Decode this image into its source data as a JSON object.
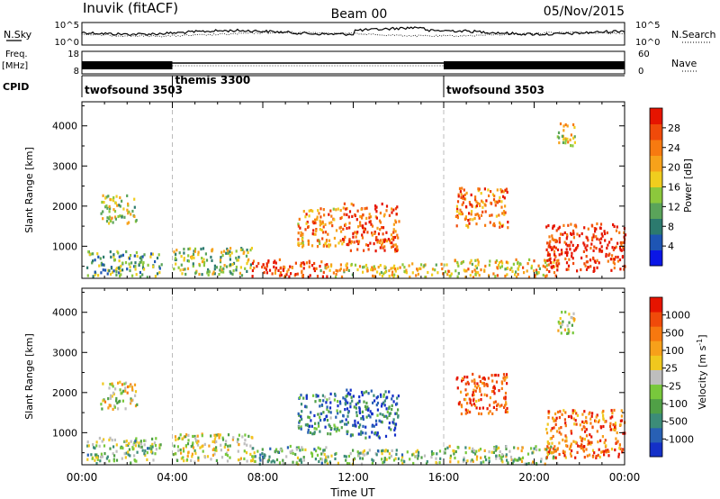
{
  "header": {
    "station": "Inuvik (fitACF)",
    "beam": "Beam 00",
    "date": "05/Nov/2015"
  },
  "noise_panel": {
    "left_label": "N.Sky",
    "right_label": "N.Search",
    "left_ticks": [
      "10^5",
      "10^0"
    ],
    "right_ticks": [
      "10^5",
      "10^0"
    ]
  },
  "freq_panel": {
    "left_label_1": "Freq.",
    "left_label_2": "[MHz]",
    "right_label": "Nave",
    "left_ticks": [
      "18",
      "8"
    ],
    "right_ticks": [
      "60",
      "0"
    ]
  },
  "cpid": {
    "label": "CPID",
    "segments": [
      {
        "name": "twofsound 3503",
        "start_hour": 0,
        "end_hour": 4
      },
      {
        "name": "themis 3300",
        "start_hour": 4,
        "end_hour": 16
      },
      {
        "name": "twofsound 3503",
        "start_hour": 16,
        "end_hour": 24
      }
    ]
  },
  "chart_data": [
    {
      "type": "heatmap",
      "title": "",
      "parameter": "Power",
      "ylabel": "Slant Range [km]",
      "xlabel": "",
      "xlim_hours": [
        0,
        24
      ],
      "ylim": [
        200,
        4600
      ],
      "y_ticks": [
        "1000",
        "2000",
        "3000",
        "4000"
      ],
      "colorbar": {
        "label": "Power [dB]",
        "ticks": [
          "4",
          "8",
          "12",
          "16",
          "20",
          "24",
          "28"
        ],
        "colors": [
          "#0a16e6",
          "#1e55b4",
          "#2c7a6e",
          "#5aa45a",
          "#8cc83c",
          "#f0cd1e",
          "#f7a21a",
          "#f77a10",
          "#f04a0a",
          "#e61400"
        ]
      },
      "echo_regions": [
        {
          "x0": 0.2,
          "x1": 3.5,
          "y0": 250,
          "y1": 900,
          "level": 0.35
        },
        {
          "x0": 0.8,
          "x1": 2.4,
          "y0": 1600,
          "y1": 2300,
          "level": 0.5
        },
        {
          "x0": 4.0,
          "x1": 7.5,
          "y0": 300,
          "y1": 1000,
          "level": 0.45
        },
        {
          "x0": 7.5,
          "x1": 10.8,
          "y0": 250,
          "y1": 700,
          "level": 0.9
        },
        {
          "x0": 9.5,
          "x1": 11.5,
          "y0": 1000,
          "y1": 2000,
          "level": 0.7
        },
        {
          "x0": 11.5,
          "x1": 14.0,
          "y0": 900,
          "y1": 2100,
          "level": 0.85
        },
        {
          "x0": 10.5,
          "x1": 16.0,
          "y0": 250,
          "y1": 600,
          "level": 0.55
        },
        {
          "x0": 16.0,
          "x1": 21.0,
          "y0": 250,
          "y1": 700,
          "level": 0.6
        },
        {
          "x0": 16.5,
          "x1": 18.8,
          "y0": 1500,
          "y1": 2500,
          "level": 0.75
        },
        {
          "x0": 20.5,
          "x1": 24.0,
          "y0": 400,
          "y1": 1600,
          "level": 0.95
        },
        {
          "x0": 21.0,
          "x1": 21.8,
          "y0": 3500,
          "y1": 4100,
          "level": 0.55
        }
      ]
    },
    {
      "type": "heatmap",
      "title": "",
      "parameter": "Velocity",
      "ylabel": "Slant Range [km]",
      "xlabel": "Time UT",
      "xlim_hours": [
        0,
        24
      ],
      "ylim": [
        200,
        4600
      ],
      "x_ticks": [
        "00:00",
        "04:00",
        "08:00",
        "12:00",
        "16:00",
        "20:00",
        "00:00"
      ],
      "y_ticks": [
        "1000",
        "2000",
        "3000",
        "4000"
      ],
      "colorbar": {
        "label": "Velocity [m s^-1]",
        "ticks": [
          "1000",
          "500",
          "100",
          "25",
          "-25",
          "-100",
          "-500",
          "-1000"
        ],
        "colors": [
          "#1430c8",
          "#2860b4",
          "#3c8c78",
          "#50a046",
          "#78c83c",
          "#bebebe",
          "#f0c81e",
          "#f7a01a",
          "#f7780f",
          "#f04a0a",
          "#e61400"
        ]
      },
      "echo_regions": [
        {
          "x0": 0.2,
          "x1": 3.5,
          "y0": 250,
          "y1": 900,
          "level": 0.4
        },
        {
          "x0": 0.8,
          "x1": 2.4,
          "y0": 1600,
          "y1": 2300,
          "level": 0.55
        },
        {
          "x0": 4.0,
          "x1": 7.5,
          "y0": 300,
          "y1": 1000,
          "level": 0.5
        },
        {
          "x0": 7.5,
          "x1": 10.8,
          "y0": 250,
          "y1": 700,
          "level": 0.35
        },
        {
          "x0": 9.5,
          "x1": 11.5,
          "y0": 1000,
          "y1": 2000,
          "level": 0.25
        },
        {
          "x0": 11.5,
          "x1": 14.0,
          "y0": 900,
          "y1": 2100,
          "level": 0.15
        },
        {
          "x0": 10.5,
          "x1": 16.0,
          "y0": 250,
          "y1": 600,
          "level": 0.4
        },
        {
          "x0": 16.0,
          "x1": 21.0,
          "y0": 250,
          "y1": 700,
          "level": 0.45
        },
        {
          "x0": 16.5,
          "x1": 18.8,
          "y0": 1500,
          "y1": 2500,
          "level": 0.85
        },
        {
          "x0": 20.5,
          "x1": 24.0,
          "y0": 400,
          "y1": 1600,
          "level": 0.8
        },
        {
          "x0": 21.0,
          "x1": 21.8,
          "y0": 3500,
          "y1": 4100,
          "level": 0.5
        }
      ]
    }
  ]
}
